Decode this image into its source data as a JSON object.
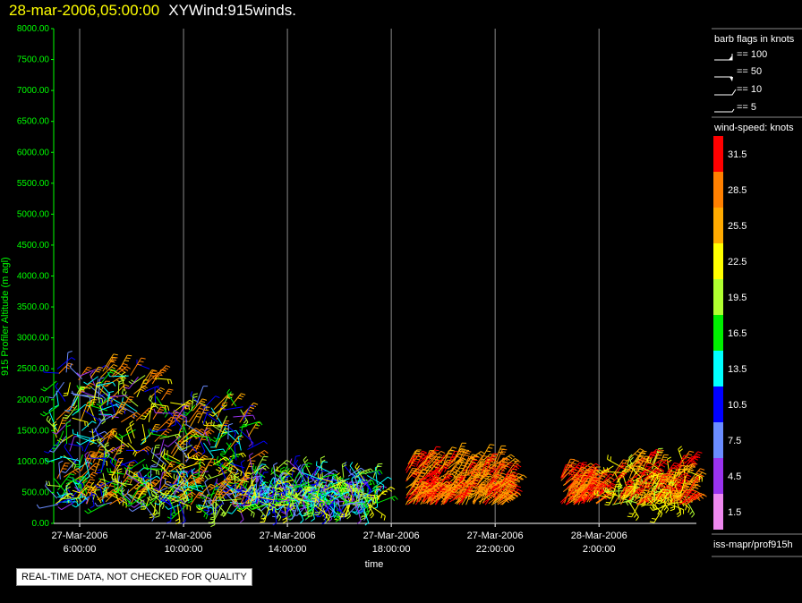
{
  "title": {
    "datetime": "28-mar-2006,05:00:00",
    "product": "XYWind:915winds."
  },
  "legend": {
    "barb_title": "barb flags in knots",
    "barbs": [
      "== 100",
      "== 50",
      "== 10",
      "== 5"
    ],
    "speed_title": "wind-speed: knots",
    "speed_colors": [
      "#ff0000",
      "#ff8000",
      "#ffaa00",
      "#ffff00",
      "#b0ff30",
      "#00ee00",
      "#00ffff",
      "#0000ff",
      "#6a8cff",
      "#9933ee",
      "#ee88ee"
    ],
    "speed_labels": [
      "31.5",
      "28.5",
      "25.5",
      "22.5",
      "19.5",
      "16.5",
      "13.5",
      "10.5",
      "7.5",
      "4.5",
      "1.5"
    ],
    "source": "iss-mapr/prof915h"
  },
  "quality_notice": "REAL-TIME DATA, NOT CHECKED FOR QUALITY",
  "chart_data": {
    "type": "scatter",
    "title": "",
    "xlabel": "time",
    "ylabel": "915 Profiler Altitude (m agl)",
    "ylim": [
      0,
      8000
    ],
    "yticks": [
      "8000.00",
      "7500.00",
      "7000.00",
      "6500.00",
      "6000.00",
      "5500.00",
      "5000.00",
      "4500.00",
      "4000.00",
      "3500.00",
      "3000.00",
      "2500.00",
      "2000.00",
      "1500.00",
      "1000.00",
      "500.00",
      "0.00"
    ],
    "xticks": [
      {
        "date": "27-Mar-2006",
        "time": "6:00:00"
      },
      {
        "date": "27-Mar-2006",
        "time": "10:00:00"
      },
      {
        "date": "27-Mar-2006",
        "time": "14:00:00"
      },
      {
        "date": "27-Mar-2006",
        "time": "18:00:00"
      },
      {
        "date": "27-Mar-2006",
        "time": "22:00:00"
      },
      {
        "date": "28-Mar-2006",
        "time": "2:00:00"
      }
    ],
    "x_hours_range": [
      5.0,
      29.75
    ],
    "grid": "vertical",
    "clusters": [
      {
        "t_start": 5.0,
        "t_end": 9.0,
        "alt_min": 300,
        "alt_max": 2500,
        "speed_min": 4,
        "speed_max": 30
      },
      {
        "t_start": 9.0,
        "t_end": 12.5,
        "alt_min": 300,
        "alt_max": 2000,
        "speed_min": 4,
        "speed_max": 30
      },
      {
        "t_start": 12.5,
        "t_end": 17.5,
        "alt_min": 300,
        "alt_max": 800,
        "speed_min": 4,
        "speed_max": 24
      },
      {
        "t_start": 18.5,
        "t_end": 22.5,
        "alt_min": 300,
        "alt_max": 1000,
        "speed_min": 24,
        "speed_max": 33
      },
      {
        "t_start": 24.5,
        "t_end": 26.0,
        "alt_min": 300,
        "alt_max": 800,
        "speed_min": 26,
        "speed_max": 33
      },
      {
        "t_start": 26.5,
        "t_end": 29.5,
        "alt_min": 300,
        "alt_max": 1000,
        "speed_min": 20,
        "speed_max": 33
      }
    ]
  }
}
